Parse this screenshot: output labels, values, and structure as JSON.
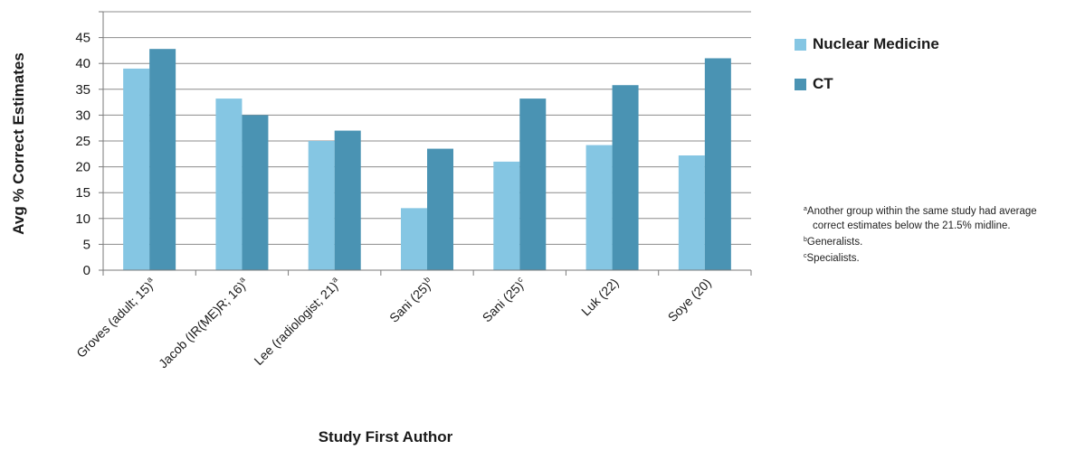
{
  "chart_data": {
    "type": "bar",
    "title": "",
    "xlabel": "Study First Author",
    "ylabel": "Avg % Correct Estimates",
    "ylim": [
      0,
      50
    ],
    "yticks": [
      0,
      5,
      10,
      15,
      20,
      25,
      30,
      35,
      40,
      45
    ],
    "grid": true,
    "legend_position": "right",
    "categories": [
      {
        "label": "Groves (adult; 15)",
        "sup": "a"
      },
      {
        "label": "Jacob (IR(ME)R; 16)",
        "sup": "a"
      },
      {
        "label": "Lee (radiologist; 21)",
        "sup": "a"
      },
      {
        "label": "Sani (25)",
        "sup": "b"
      },
      {
        "label": "Sani (25)",
        "sup": "c"
      },
      {
        "label": "Luk (22)",
        "sup": ""
      },
      {
        "label": "Soye (20)",
        "sup": ""
      }
    ],
    "series": [
      {
        "name": "Nuclear Medicine",
        "color": "#85c6e3",
        "values": [
          39,
          33.2,
          25,
          12,
          21,
          24.2,
          22.2
        ]
      },
      {
        "name": "CT",
        "color": "#4a93b3",
        "values": [
          42.8,
          30,
          27,
          23.5,
          33.2,
          35.8,
          41
        ]
      }
    ]
  },
  "footnotes": [
    {
      "sup": "a",
      "lines": [
        "Another group within the same study had average",
        "correct estimates below the 21.5% midline."
      ]
    },
    {
      "sup": "b",
      "lines": [
        "Generalists."
      ]
    },
    {
      "sup": "c",
      "lines": [
        "Specialists."
      ]
    }
  ]
}
